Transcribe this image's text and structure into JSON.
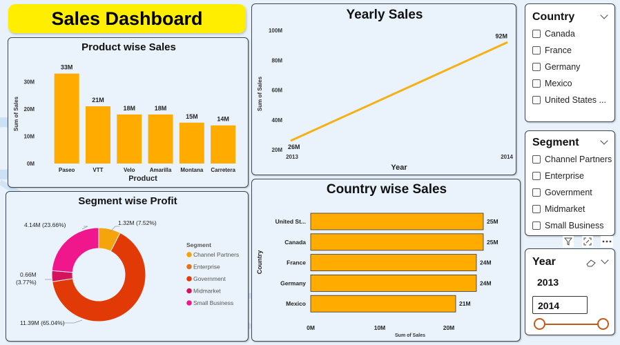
{
  "header": {
    "title": "Sales Dashboard"
  },
  "product_chart": {
    "title": "Product wise Sales",
    "xlabel": "Product",
    "ylabel": "Sum of Sales",
    "yticks": [
      "0M",
      "10M",
      "20M",
      "30M"
    ],
    "categories": [
      "Paseo",
      "VTT",
      "Velo",
      "Amarilla",
      "Montana",
      "Carretera"
    ],
    "values": [
      33,
      21,
      18,
      18,
      15,
      14
    ],
    "labels": [
      "33M",
      "21M",
      "18M",
      "18M",
      "15M",
      "14M"
    ],
    "color": "#ffab00"
  },
  "yearly_chart": {
    "title": "Yearly Sales",
    "xlabel": "Year",
    "ylabel": "Sum of Sales",
    "yticks": [
      "20M",
      "40M",
      "60M",
      "80M",
      "100M"
    ],
    "x": [
      "2013",
      "2014"
    ],
    "values": [
      26,
      92
    ],
    "labels": [
      "26M",
      "92M"
    ],
    "color": "#f5b014"
  },
  "segment_chart": {
    "title": "Segment wise Profit",
    "legend_title": "Segment",
    "series": [
      {
        "name": "Channel Partners",
        "value": 1.32,
        "label": "1.32M (7.52%)",
        "color": "#f5a40c"
      },
      {
        "name": "Enterprise",
        "value": 0.0,
        "label": "",
        "color": "#e8721a"
      },
      {
        "name": "Government",
        "value": 11.39,
        "label": "11.39M (65.04%)",
        "color": "#e23a07"
      },
      {
        "name": "Midmarket",
        "value": 0.66,
        "label": "0.66M (3.77%)",
        "color": "#d4145a"
      },
      {
        "name": "Small Business",
        "value": 4.14,
        "label": "4.14M (23.66%)",
        "color": "#f0168c"
      }
    ]
  },
  "country_chart": {
    "title": "Country wise Sales",
    "xlabel": "Sum of Sales",
    "ylabel": "Country",
    "xticks": [
      "0M",
      "10M",
      "20M"
    ],
    "categories": [
      "United St...",
      "Canada",
      "France",
      "Germany",
      "Mexico"
    ],
    "values": [
      25,
      25,
      24,
      24,
      21
    ],
    "labels": [
      "25M",
      "25M",
      "24M",
      "24M",
      "21M"
    ],
    "color": "#ffab00"
  },
  "country_slicer": {
    "title": "Country",
    "items": [
      "Canada",
      "France",
      "Germany",
      "Mexico",
      "United States ..."
    ]
  },
  "segment_slicer": {
    "title": "Segment",
    "items": [
      "Channel Partners",
      "Enterprise",
      "Government",
      "Midmarket",
      "Small Business"
    ]
  },
  "year_slicer": {
    "title": "Year",
    "from": "2013",
    "to": "2014"
  },
  "chart_data": [
    {
      "type": "bar",
      "title": "Product wise Sales",
      "xlabel": "Product",
      "ylabel": "Sum of Sales",
      "categories": [
        "Paseo",
        "VTT",
        "Velo",
        "Amarilla",
        "Montana",
        "Carretera"
      ],
      "values": [
        33,
        21,
        18,
        18,
        15,
        14
      ],
      "ylim": [
        0,
        35
      ]
    },
    {
      "type": "line",
      "title": "Yearly Sales",
      "xlabel": "Year",
      "ylabel": "Sum of Sales",
      "x": [
        "2013",
        "2014"
      ],
      "values": [
        26,
        92
      ],
      "ylim": [
        20,
        100
      ]
    },
    {
      "type": "pie",
      "title": "Segment wise Profit",
      "categories": [
        "Channel Partners",
        "Enterprise",
        "Government",
        "Midmarket",
        "Small Business"
      ],
      "values": [
        1.32,
        0,
        11.39,
        0.66,
        4.14
      ]
    },
    {
      "type": "bar",
      "title": "Country wise Sales",
      "xlabel": "Sum of Sales",
      "ylabel": "Country",
      "categories": [
        "United St...",
        "Canada",
        "France",
        "Germany",
        "Mexico"
      ],
      "values": [
        25,
        25,
        24,
        24,
        21
      ],
      "xlim": [
        0,
        26
      ]
    }
  ]
}
